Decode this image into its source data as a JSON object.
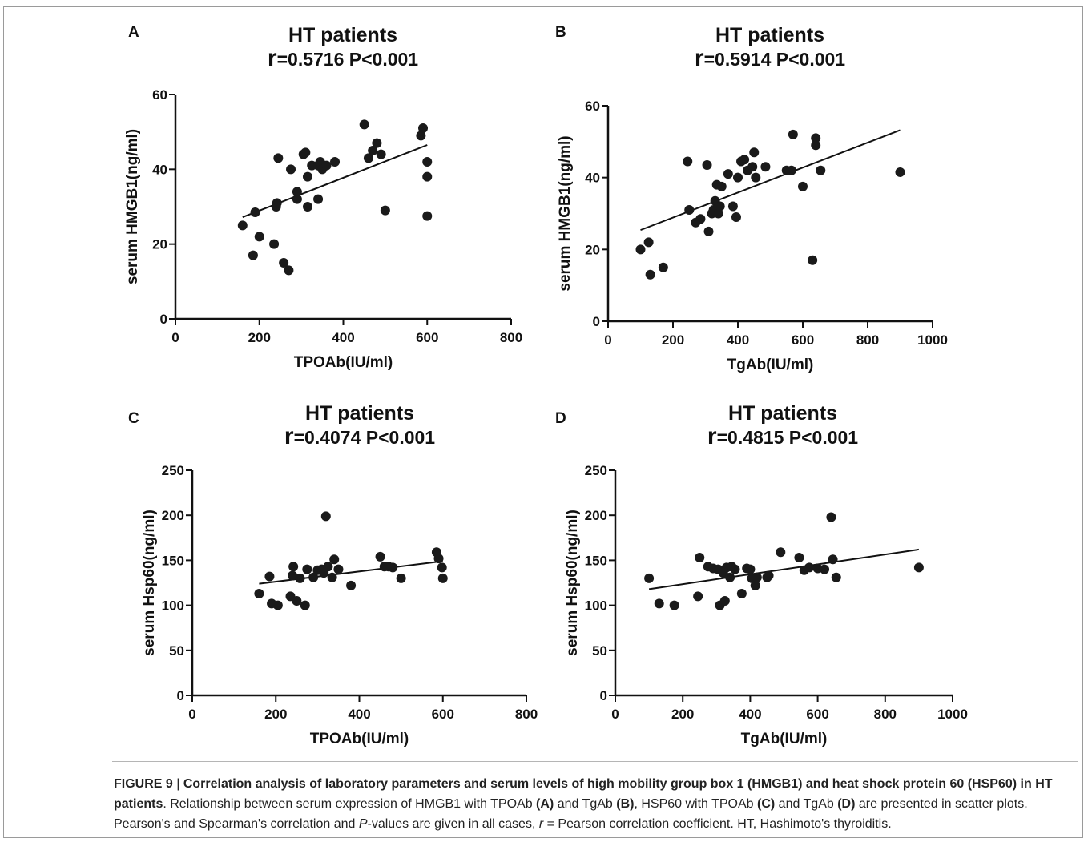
{
  "chart_data": [
    {
      "panel": "A",
      "type": "scatter",
      "title": "HT patients",
      "stat_r": "r",
      "stat_text": "=0.5716  P<0.001",
      "xlabel": "TPOAb(IU/ml)",
      "ylabel": "serum HMGB1(ng/ml)",
      "xlim": [
        0,
        800
      ],
      "ylim": [
        0,
        60
      ],
      "xticks": [
        0,
        200,
        400,
        600,
        800
      ],
      "yticks": [
        0,
        20,
        40,
        60
      ],
      "x": [
        160,
        185,
        190,
        200,
        235,
        240,
        242,
        245,
        258,
        270,
        275,
        290,
        290,
        305,
        310,
        315,
        315,
        325,
        340,
        340,
        345,
        350,
        360,
        380,
        450,
        460,
        470,
        480,
        490,
        500,
        585,
        590,
        600,
        600,
        600
      ],
      "y": [
        25,
        17,
        28.5,
        22,
        20,
        30,
        31,
        43,
        15,
        13,
        40,
        32,
        34,
        44,
        44.5,
        30,
        38,
        41,
        32,
        41,
        42,
        40,
        41,
        42,
        52,
        43,
        45,
        47,
        44,
        29,
        49,
        51,
        42,
        38,
        27.5
      ],
      "trendline": [
        [
          160,
          27.2
        ],
        [
          600,
          46.5
        ]
      ]
    },
    {
      "panel": "B",
      "type": "scatter",
      "title": "HT patients",
      "stat_r": "r",
      "stat_text": "=0.5914  P<0.001",
      "xlabel": "TgAb(IU/ml)",
      "ylabel": "serum HMGB1(ng/ml)",
      "xlim": [
        0,
        1000
      ],
      "ylim": [
        0,
        60
      ],
      "xticks": [
        0,
        200,
        400,
        600,
        800,
        1000
      ],
      "yticks": [
        0,
        20,
        40,
        60
      ],
      "x": [
        100,
        125,
        130,
        170,
        245,
        250,
        270,
        285,
        305,
        310,
        320,
        325,
        330,
        335,
        340,
        345,
        350,
        370,
        385,
        395,
        400,
        410,
        420,
        430,
        445,
        450,
        455,
        485,
        550,
        565,
        570,
        600,
        630,
        640,
        640,
        655,
        900
      ],
      "y": [
        20,
        22,
        13,
        15,
        44.5,
        31,
        27.5,
        28.5,
        43.5,
        25,
        30,
        31,
        33.5,
        38,
        30,
        32,
        37.5,
        41,
        32,
        29,
        40,
        44.5,
        45,
        42,
        43,
        47,
        40,
        43,
        42,
        42,
        52,
        37.5,
        17,
        49,
        51,
        42,
        41.5
      ],
      "trendline": [
        [
          100,
          25.4
        ],
        [
          900,
          53.2
        ]
      ]
    },
    {
      "panel": "C",
      "type": "scatter",
      "title": "HT patients",
      "stat_r": "r",
      "stat_text": "=0.4074  P<0.001",
      "xlabel": "TPOAb(IU/ml)",
      "ylabel": "serum Hsp60(ng/ml)",
      "xlim": [
        0,
        800
      ],
      "ylim": [
        0,
        250
      ],
      "xticks": [
        0,
        200,
        400,
        600,
        800
      ],
      "yticks": [
        0,
        50,
        100,
        150,
        200,
        250
      ],
      "x": [
        160,
        185,
        190,
        205,
        235,
        240,
        242,
        250,
        258,
        270,
        275,
        290,
        300,
        310,
        315,
        320,
        325,
        335,
        340,
        350,
        380,
        450,
        460,
        470,
        480,
        500,
        585,
        590,
        598,
        600
      ],
      "y": [
        113,
        132,
        102,
        100,
        110,
        133,
        143,
        105,
        130,
        100,
        140,
        131,
        139,
        140,
        136,
        199,
        143,
        131,
        151,
        140,
        122,
        154,
        143,
        143,
        142,
        130,
        159,
        152,
        142,
        130
      ],
      "trendline": [
        [
          160,
          124
        ],
        [
          600,
          149
        ]
      ]
    },
    {
      "panel": "D",
      "type": "scatter",
      "title": "HT patients",
      "stat_r": "r",
      "stat_text": "=0.4815  P<0.001",
      "xlabel": "TgAb(IU/ml)",
      "ylabel": "serum Hsp60(ng/ml)",
      "xlim": [
        0,
        1000
      ],
      "ylim": [
        0,
        250
      ],
      "xticks": [
        0,
        200,
        400,
        600,
        800,
        1000
      ],
      "yticks": [
        0,
        50,
        100,
        150,
        200,
        250
      ],
      "x": [
        100,
        130,
        175,
        245,
        250,
        275,
        290,
        305,
        310,
        320,
        325,
        330,
        340,
        345,
        355,
        375,
        390,
        400,
        405,
        415,
        420,
        450,
        455,
        490,
        545,
        560,
        575,
        600,
        620,
        640,
        645,
        655,
        900
      ],
      "y": [
        130,
        102,
        100,
        110,
        153,
        143,
        141,
        140,
        100,
        136,
        105,
        142,
        131,
        143,
        140,
        113,
        141,
        140,
        130,
        122,
        131,
        131,
        133,
        159,
        153,
        139,
        142,
        141,
        140,
        198,
        151,
        131,
        142
      ],
      "trendline": [
        [
          100,
          118
        ],
        [
          900,
          162
        ]
      ]
    }
  ],
  "caption": {
    "label": "FIGURE 9",
    "separator": " | ",
    "bold_title": "Correlation analysis of laboratory parameters and serum levels of high mobility group box 1 (HMGB1) and heat shock protein 60 (HSP60) in HT patients",
    "body_1": ". Relationship between serum expression of HMGB1 with TPOAb ",
    "ref_a": "(A)",
    "body_2": " and TgAb ",
    "ref_b": "(B)",
    "body_3": ", HSP60 with TPOAb ",
    "ref_c": "(C)",
    "body_4": " and TgAb ",
    "ref_d": "(D)",
    "body_5": " are presented in scatter plots. Pearson's and Spearman's correlation and ",
    "p_italic": "P",
    "body_6": "-values are given in all cases, ",
    "r_italic": "r",
    "body_7": " = Pearson correlation coefficient. HT, Hashimoto's thyroiditis."
  }
}
